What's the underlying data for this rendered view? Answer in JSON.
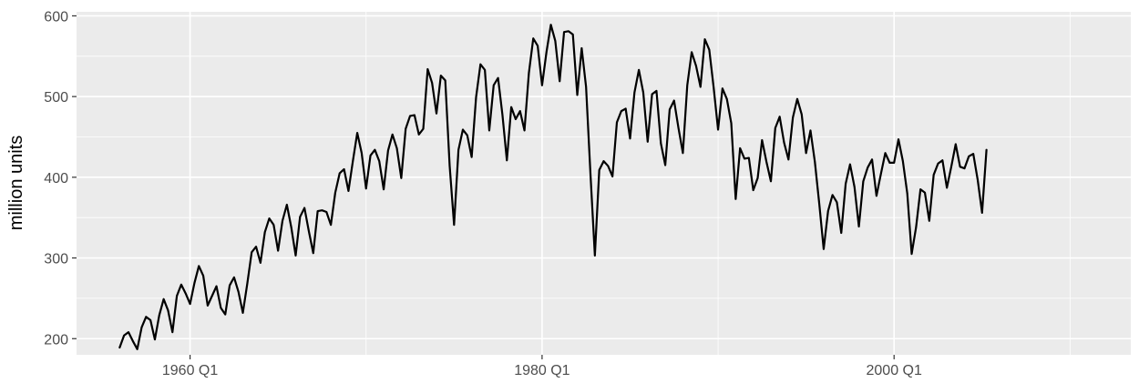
{
  "chart_data": {
    "type": "line",
    "title": "",
    "xlabel": "",
    "ylabel": "million units",
    "xlim": [
      1953.55,
      2013.45
    ],
    "ylim": [
      180,
      605
    ],
    "x_ticks": [
      {
        "value": 1960,
        "label": "1960 Q1"
      },
      {
        "value": 1980,
        "label": "1980 Q1"
      },
      {
        "value": 2000,
        "label": "2000 Q1"
      }
    ],
    "x_minor_ticks": [
      1970,
      1990,
      2010
    ],
    "y_ticks": [
      {
        "value": 200,
        "label": "200"
      },
      {
        "value": 300,
        "label": "300"
      },
      {
        "value": 400,
        "label": "400"
      },
      {
        "value": 500,
        "label": "500"
      },
      {
        "value": 600,
        "label": "600"
      }
    ],
    "y_minor_ticks": [
      250,
      350,
      450,
      550
    ],
    "grid": true,
    "x_start": 1956.0,
    "x_step": 0.25,
    "series": [
      {
        "color": "#000000",
        "values": [
          189,
          204,
          208,
          197,
          187,
          214,
          227,
          223,
          199,
          229,
          249,
          235,
          208,
          253,
          267,
          256,
          243,
          269,
          290,
          278,
          241,
          253,
          265,
          238,
          230,
          266,
          276,
          258,
          232,
          268,
          307,
          314,
          294,
          332,
          349,
          341,
          309,
          346,
          366,
          338,
          303,
          351,
          362,
          333,
          306,
          358,
          359,
          357,
          341,
          381,
          405,
          410,
          383,
          420,
          455,
          430,
          386,
          427,
          434,
          420,
          385,
          433,
          453,
          436,
          399,
          460,
          476,
          477,
          453,
          460,
          534,
          517,
          479,
          526,
          520,
          414,
          341,
          434,
          459,
          452,
          425,
          499,
          540,
          533,
          458,
          514,
          523,
          477,
          421,
          487,
          472,
          482,
          458,
          529,
          572,
          563,
          514,
          555,
          589,
          569,
          519,
          580,
          581,
          577,
          502,
          560,
          512,
          404,
          303,
          409,
          420,
          414,
          401,
          468,
          482,
          485,
          448,
          505,
          533,
          505,
          444,
          503,
          507,
          442,
          415,
          484,
          495,
          461,
          430,
          514,
          555,
          538,
          512,
          571,
          558,
          511,
          459,
          510,
          497,
          467,
          373,
          436,
          423,
          424,
          384,
          399,
          446,
          419,
          395,
          461,
          475,
          443,
          422,
          474,
          497,
          478,
          430,
          458,
          419,
          367,
          311,
          358,
          378,
          369,
          331,
          392,
          416,
          388,
          339,
          395,
          412,
          422,
          377,
          404,
          430,
          418,
          418,
          447,
          420,
          380,
          305,
          338,
          385,
          381,
          346,
          403,
          417,
          421,
          387,
          413,
          441,
          413,
          411,
          426,
          429,
          397,
          356,
          434
        ]
      }
    ]
  }
}
